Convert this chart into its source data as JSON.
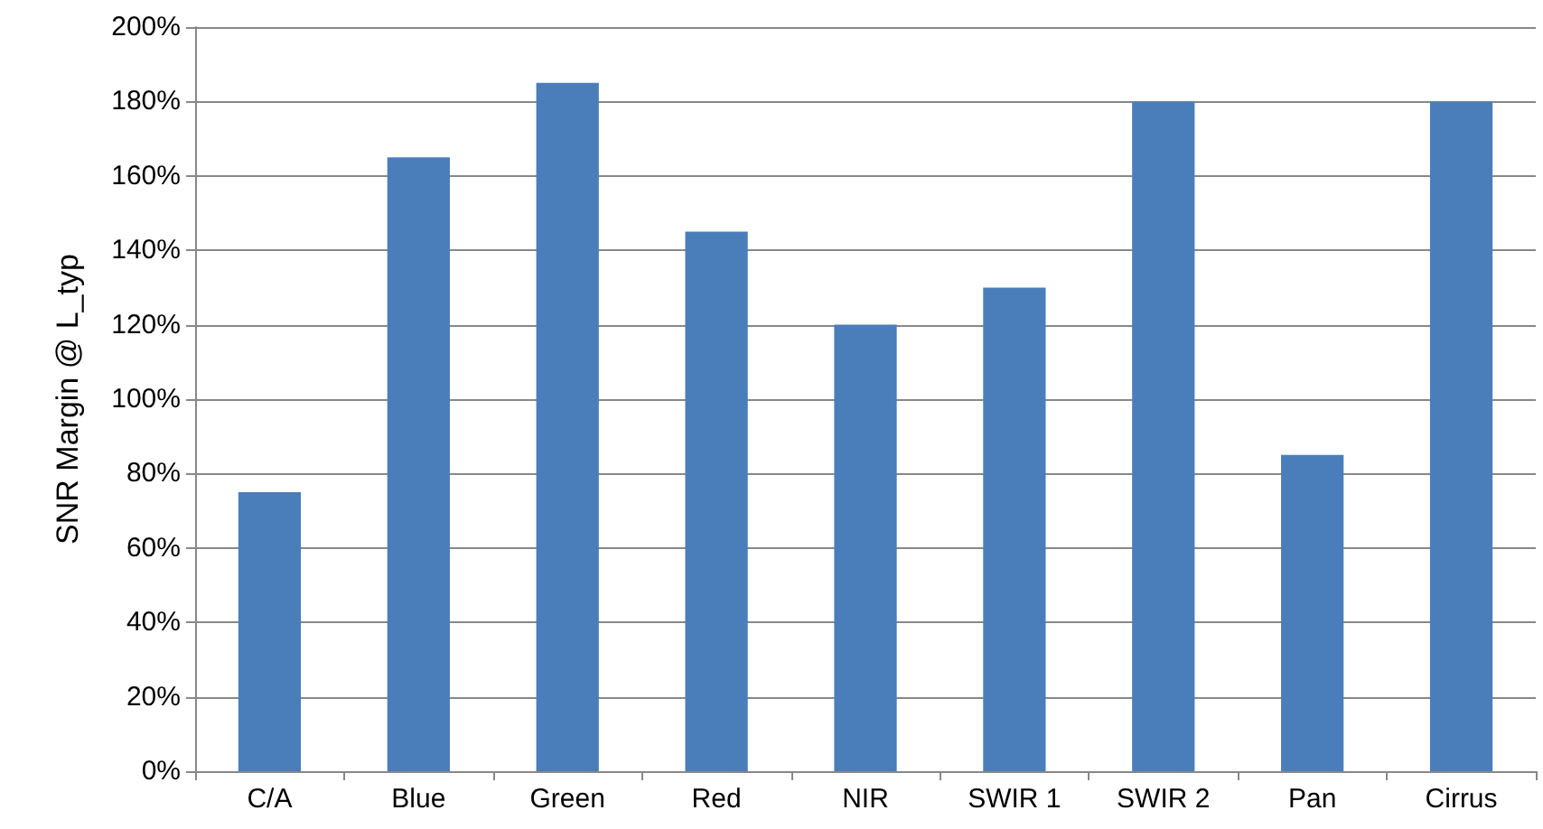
{
  "chart_data": {
    "type": "bar",
    "ylabel": "SNR Margin @ L_typ",
    "categories": [
      "C/A",
      "Blue",
      "Green",
      "Red",
      "NIR",
      "SWIR 1",
      "SWIR 2",
      "Pan",
      "Cirrus"
    ],
    "values": [
      75,
      165,
      185,
      145,
      120,
      130,
      180,
      85,
      180
    ],
    "color": "#4a7ebb",
    "ylim": [
      0,
      200
    ],
    "yticks": [
      {
        "value": 0,
        "label": "0%"
      },
      {
        "value": 20,
        "label": "20%"
      },
      {
        "value": 40,
        "label": "40%"
      },
      {
        "value": 60,
        "label": "60%"
      },
      {
        "value": 80,
        "label": "80%"
      },
      {
        "value": 100,
        "label": "100%"
      },
      {
        "value": 120,
        "label": "120%"
      },
      {
        "value": 140,
        "label": "140%"
      },
      {
        "value": 160,
        "label": "160%"
      },
      {
        "value": 180,
        "label": "180%"
      },
      {
        "value": 200,
        "label": "200%"
      }
    ],
    "grid": "y"
  }
}
